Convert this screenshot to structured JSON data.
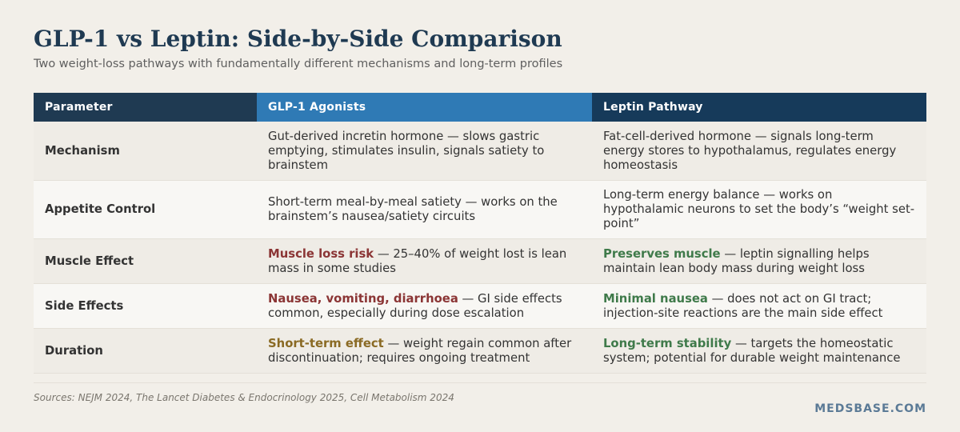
{
  "title": "GLP-1 vs Leptin: Side-by-Side Comparison",
  "subtitle": "Two weight-loss pathways with fundamentally different mechanisms and long-term profiles",
  "colors": {
    "header_parameter": "#1f3a52",
    "header_glp1": "#2f7ab5",
    "header_leptin": "#163a5a",
    "negative_highlight": "#8b3535",
    "positive_highlight": "#3f7a4a",
    "caution_highlight": "#8a6a24"
  },
  "table": {
    "headers": [
      "Parameter",
      "GLP-1 Agonists",
      "Leptin Pathway"
    ],
    "rows": [
      {
        "parameter": "Mechanism",
        "glp1": {
          "highlight": "",
          "text": "Gut-derived incretin hormone — slows gastric emptying, stimulates insulin, signals satiety to brainstem"
        },
        "leptin": {
          "highlight": "",
          "text": "Fat-cell-derived hormone — signals long-term energy stores to hypothalamus, regulates energy homeostasis"
        }
      },
      {
        "parameter": "Appetite Control",
        "glp1": {
          "highlight": "",
          "text": "Short-term meal-by-meal satiety — works on the brainstem’s nausea/satiety circuits"
        },
        "leptin": {
          "highlight": "",
          "text": "Long-term energy balance — works on hypothalamic neurons to set the body’s “weight set-point”"
        }
      },
      {
        "parameter": "Muscle Effect",
        "glp1": {
          "highlight": "Muscle loss risk",
          "text": " — 25–40% of weight lost is lean mass in some studies"
        },
        "leptin": {
          "highlight": "Preserves muscle",
          "text": " — leptin signalling helps maintain lean body mass during weight loss"
        }
      },
      {
        "parameter": "Side Effects",
        "glp1": {
          "highlight": "Nausea, vomiting, diarrhoea",
          "text": " — GI side effects common, especially during dose escalation"
        },
        "leptin": {
          "highlight": "Minimal nausea",
          "text": " — does not act on GI tract; injection-site reactions are the main side effect"
        }
      },
      {
        "parameter": "Duration",
        "glp1": {
          "highlight": "Short-term effect",
          "text": " — weight regain common after discontinuation; requires ongoing treatment"
        },
        "leptin": {
          "highlight": "Long-term stability",
          "text": " — targets the homeostatic system; potential for durable weight maintenance"
        }
      }
    ]
  },
  "sources": "Sources: NEJM 2024, The Lancet Diabetes & Endocrinology 2025, Cell Metabolism 2024",
  "brand": "MEDSBASE.COM"
}
